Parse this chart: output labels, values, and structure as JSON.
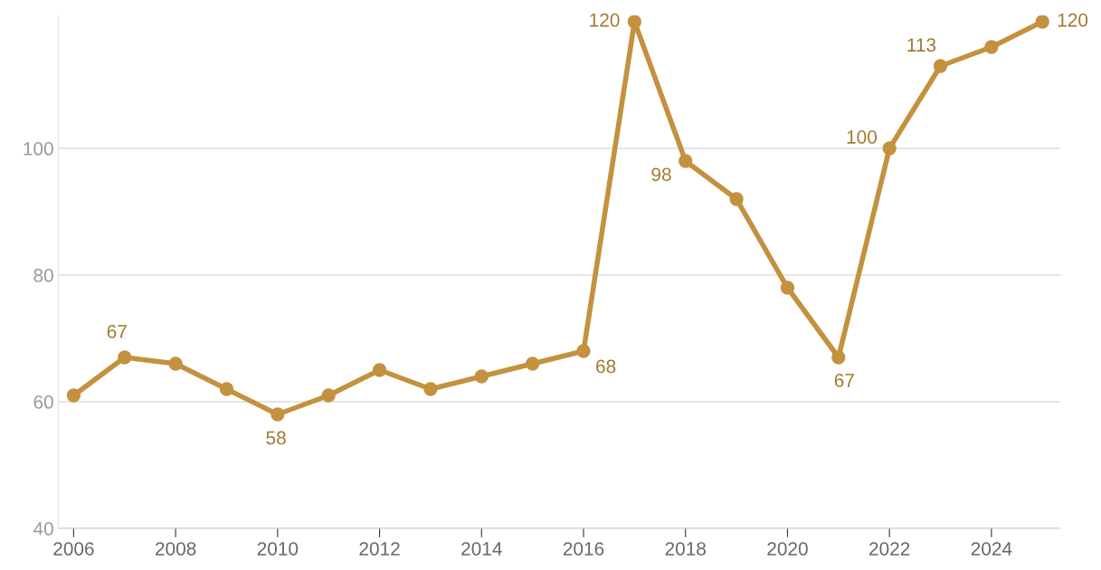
{
  "chart_data": {
    "type": "line",
    "x": [
      2006,
      2007,
      2008,
      2009,
      2010,
      2011,
      2012,
      2013,
      2014,
      2015,
      2016,
      2017,
      2018,
      2019,
      2020,
      2021,
      2022,
      2023,
      2024,
      2025
    ],
    "series": [
      {
        "color": "#c4913f",
        "values": [
          61,
          67,
          66,
          62,
          58,
          61,
          65,
          62,
          64,
          66,
          68,
          120,
          98,
          92,
          78,
          67,
          100,
          113,
          116,
          120
        ],
        "value_labels": [
          null,
          "67",
          null,
          null,
          "58",
          null,
          null,
          null,
          null,
          null,
          "68",
          "120",
          "98",
          null,
          null,
          "67",
          "100",
          "113",
          null,
          "120"
        ]
      }
    ],
    "xlim": [
      2005.7,
      2025.35
    ],
    "xticks": [
      2006,
      2008,
      2010,
      2012,
      2014,
      2016,
      2018,
      2020,
      2022,
      2024
    ],
    "ylim": [
      40,
      121
    ],
    "yticks": [
      40,
      60,
      80,
      100
    ],
    "grid": "y",
    "marker": "circle",
    "line_style": "solid",
    "legend": false
  }
}
